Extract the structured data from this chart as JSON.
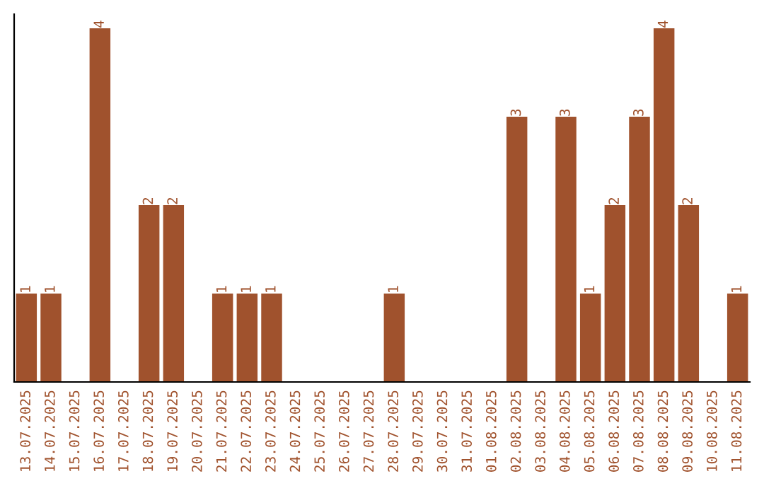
{
  "chart_data": {
    "type": "bar",
    "categories": [
      "13.07.2025",
      "14.07.2025",
      "15.07.2025",
      "16.07.2025",
      "17.07.2025",
      "18.07.2025",
      "19.07.2025",
      "20.07.2025",
      "21.07.2025",
      "22.07.2025",
      "23.07.2025",
      "24.07.2025",
      "25.07.2025",
      "26.07.2025",
      "27.07.2025",
      "28.07.2025",
      "29.07.2025",
      "30.07.2025",
      "31.07.2025",
      "01.08.2025",
      "02.08.2025",
      "03.08.2025",
      "04.08.2025",
      "05.08.2025",
      "06.08.2025",
      "07.08.2025",
      "08.08.2025",
      "09.08.2025",
      "10.08.2025",
      "11.08.2025"
    ],
    "values": [
      1,
      1,
      0,
      4,
      0,
      2,
      2,
      0,
      1,
      1,
      1,
      0,
      0,
      0,
      0,
      1,
      0,
      0,
      0,
      0,
      3,
      0,
      3,
      1,
      2,
      3,
      4,
      2,
      0,
      1
    ],
    "value_labels": [
      "1",
      "1",
      null,
      "4",
      null,
      "2",
      "2",
      null,
      "1",
      "1",
      "1",
      null,
      null,
      null,
      null,
      "1",
      null,
      null,
      null,
      null,
      "3",
      null,
      "3",
      "1",
      "2",
      "3",
      "4",
      "2",
      null,
      "1"
    ],
    "color": "#a0522d",
    "ylim": [
      0,
      4.16
    ],
    "tick_labels": "x",
    "grid": false,
    "legend": false
  }
}
